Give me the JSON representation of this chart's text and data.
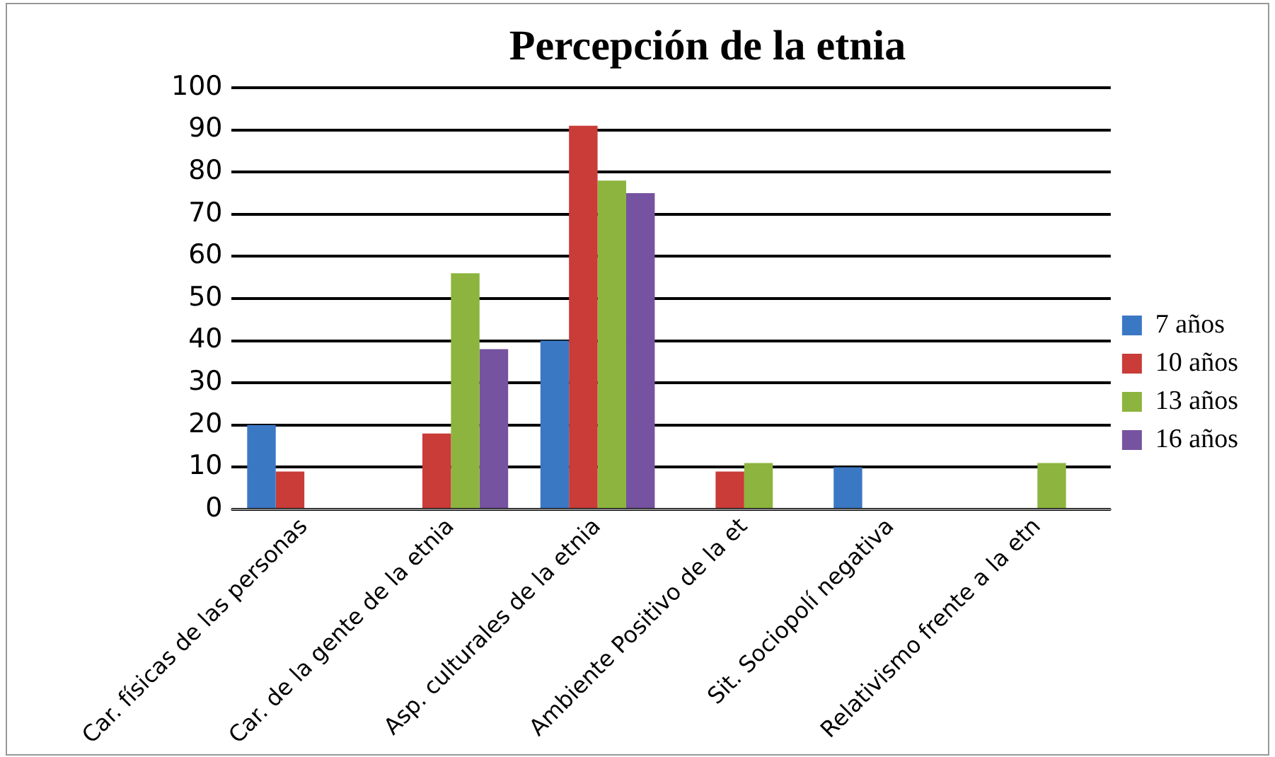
{
  "chart_data": {
    "type": "bar",
    "title": "Percepción de la etnia",
    "categories": [
      "Car. físicas de las personas",
      "Car. de la gente de la etnia",
      "Asp. culturales de la etnia",
      "Ambiente Positivo de la et",
      "Sit. Sociopolí negativa",
      "Relativismo frente a la etn"
    ],
    "series": [
      {
        "name": "7 años",
        "color": "#3b78c4",
        "values": [
          20,
          0,
          40,
          0,
          10,
          0
        ]
      },
      {
        "name": "10 años",
        "color": "#c93c38",
        "values": [
          9,
          18,
          91,
          9,
          0,
          0
        ]
      },
      {
        "name": "13 años",
        "color": "#8db43e",
        "values": [
          0,
          56,
          78,
          11,
          0,
          11
        ]
      },
      {
        "name": "16 años",
        "color": "#7653a0",
        "values": [
          0,
          38,
          75,
          0,
          0,
          0
        ]
      }
    ],
    "ylim": [
      0,
      100
    ],
    "yticks": [
      0,
      10,
      20,
      30,
      40,
      50,
      60,
      70,
      80,
      90,
      100
    ],
    "grid": "y",
    "legend": "right"
  }
}
